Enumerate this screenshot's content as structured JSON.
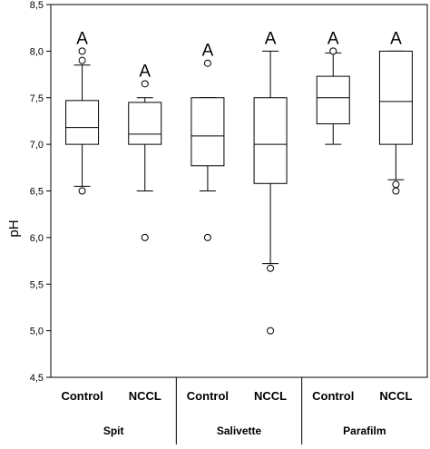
{
  "chart_data": {
    "type": "box",
    "ylabel": "pH",
    "ylim": [
      4.5,
      8.5
    ],
    "yticks": [
      "4,5",
      "5,0",
      "5,5",
      "6,0",
      "6,5",
      "7,0",
      "7,5",
      "8,0",
      "8,5"
    ],
    "ytick_values": [
      4.5,
      5.0,
      5.5,
      6.0,
      6.5,
      7.0,
      7.5,
      8.0,
      8.5
    ],
    "grid": false,
    "groups": [
      "Spit",
      "Salivette",
      "Parafilm"
    ],
    "boxes": [
      {
        "group": "Spit",
        "category": "Control",
        "whisker_low": 6.55,
        "q1": 7.0,
        "median": 7.18,
        "q3": 7.47,
        "whisker_high": 7.85,
        "outliers": [
          6.5,
          7.9,
          8.0
        ],
        "letter": "A"
      },
      {
        "group": "Spit",
        "category": "NCCL",
        "whisker_low": 6.5,
        "q1": 7.0,
        "median": 7.11,
        "q3": 7.45,
        "whisker_high": 7.5,
        "outliers": [
          6.0,
          7.65
        ],
        "letter": "A"
      },
      {
        "group": "Salivette",
        "category": "Control",
        "whisker_low": 6.5,
        "q1": 6.77,
        "median": 7.09,
        "q3": 7.5,
        "whisker_high": 7.5,
        "outliers": [
          6.0,
          7.87
        ],
        "letter": "A"
      },
      {
        "group": "Salivette",
        "category": "NCCL",
        "whisker_low": 5.72,
        "q1": 6.58,
        "median": 7.0,
        "q3": 7.5,
        "whisker_high": 8.0,
        "outliers": [
          5.0,
          5.67
        ],
        "letter": "A"
      },
      {
        "group": "Parafilm",
        "category": "Control",
        "whisker_low": 7.0,
        "q1": 7.22,
        "median": 7.5,
        "q3": 7.73,
        "whisker_high": 7.98,
        "outliers": [
          8.0
        ],
        "letter": "A"
      },
      {
        "group": "Parafilm",
        "category": "NCCL",
        "whisker_low": 6.62,
        "q1": 7.0,
        "median": 7.46,
        "q3": 8.0,
        "whisker_high": 8.0,
        "outliers": [
          6.5,
          6.57
        ],
        "letter": "A"
      }
    ]
  }
}
